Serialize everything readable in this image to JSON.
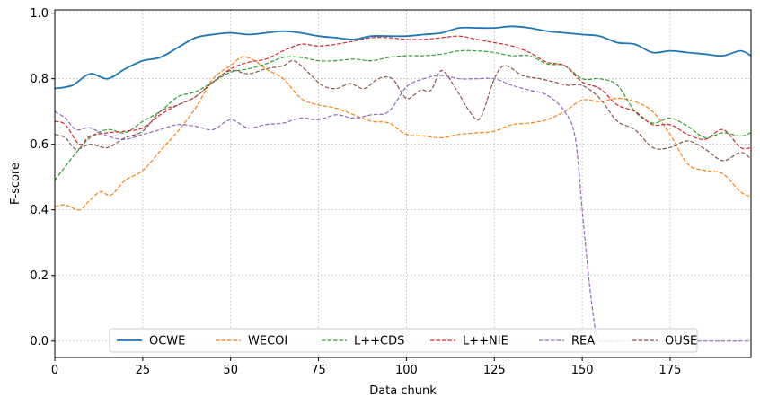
{
  "chart_data": {
    "type": "line",
    "title": "",
    "xlabel": "Data chunk",
    "ylabel": "F-score",
    "xlim": [
      0,
      198
    ],
    "ylim": [
      -0.05,
      1.01
    ],
    "xticks": [
      0,
      25,
      50,
      75,
      100,
      125,
      150,
      175
    ],
    "yticks": [
      0.0,
      0.2,
      0.4,
      0.6,
      0.8,
      1.0
    ],
    "xtick_labels": [
      "0",
      "25",
      "50",
      "75",
      "100",
      "125",
      "150",
      "175"
    ],
    "ytick_labels": [
      "0.0",
      "0.2",
      "0.4",
      "0.6",
      "0.8",
      "1.0"
    ],
    "grid": true,
    "legend_position": "bottom-center",
    "series": [
      {
        "name": "OCWE",
        "color": "#1f77b4",
        "style": "solid",
        "points": [
          [
            0,
            0.77
          ],
          [
            5,
            0.78
          ],
          [
            10,
            0.815
          ],
          [
            15,
            0.8
          ],
          [
            20,
            0.83
          ],
          [
            25,
            0.855
          ],
          [
            30,
            0.865
          ],
          [
            35,
            0.895
          ],
          [
            40,
            0.925
          ],
          [
            45,
            0.935
          ],
          [
            50,
            0.94
          ],
          [
            55,
            0.935
          ],
          [
            60,
            0.94
          ],
          [
            65,
            0.945
          ],
          [
            70,
            0.94
          ],
          [
            75,
            0.93
          ],
          [
            80,
            0.925
          ],
          [
            85,
            0.92
          ],
          [
            90,
            0.93
          ],
          [
            95,
            0.93
          ],
          [
            100,
            0.93
          ],
          [
            105,
            0.935
          ],
          [
            110,
            0.94
          ],
          [
            115,
            0.955
          ],
          [
            120,
            0.955
          ],
          [
            125,
            0.955
          ],
          [
            130,
            0.96
          ],
          [
            135,
            0.955
          ],
          [
            140,
            0.945
          ],
          [
            145,
            0.94
          ],
          [
            150,
            0.935
          ],
          [
            155,
            0.93
          ],
          [
            160,
            0.91
          ],
          [
            165,
            0.905
          ],
          [
            170,
            0.88
          ],
          [
            175,
            0.885
          ],
          [
            180,
            0.88
          ],
          [
            185,
            0.875
          ],
          [
            190,
            0.87
          ],
          [
            195,
            0.885
          ],
          [
            198,
            0.87
          ]
        ]
      },
      {
        "name": "WECOI",
        "color": "#ff7f0e",
        "style": "dashed",
        "points": [
          [
            0,
            0.41
          ],
          [
            3,
            0.415
          ],
          [
            7,
            0.4
          ],
          [
            10,
            0.43
          ],
          [
            13,
            0.455
          ],
          [
            16,
            0.445
          ],
          [
            20,
            0.49
          ],
          [
            25,
            0.52
          ],
          [
            30,
            0.58
          ],
          [
            35,
            0.64
          ],
          [
            40,
            0.71
          ],
          [
            45,
            0.8
          ],
          [
            50,
            0.84
          ],
          [
            53,
            0.865
          ],
          [
            56,
            0.86
          ],
          [
            60,
            0.83
          ],
          [
            65,
            0.8
          ],
          [
            70,
            0.74
          ],
          [
            75,
            0.72
          ],
          [
            80,
            0.71
          ],
          [
            85,
            0.69
          ],
          [
            90,
            0.67
          ],
          [
            95,
            0.665
          ],
          [
            100,
            0.63
          ],
          [
            105,
            0.625
          ],
          [
            110,
            0.62
          ],
          [
            115,
            0.63
          ],
          [
            120,
            0.635
          ],
          [
            125,
            0.64
          ],
          [
            130,
            0.66
          ],
          [
            135,
            0.665
          ],
          [
            140,
            0.675
          ],
          [
            145,
            0.7
          ],
          [
            150,
            0.735
          ],
          [
            155,
            0.73
          ],
          [
            160,
            0.74
          ],
          [
            165,
            0.73
          ],
          [
            170,
            0.7
          ],
          [
            175,
            0.63
          ],
          [
            180,
            0.54
          ],
          [
            185,
            0.52
          ],
          [
            190,
            0.51
          ],
          [
            195,
            0.455
          ],
          [
            198,
            0.44
          ]
        ]
      },
      {
        "name": "L++CDS",
        "color": "#2ca02c",
        "style": "dashed",
        "points": [
          [
            0,
            0.49
          ],
          [
            5,
            0.56
          ],
          [
            10,
            0.62
          ],
          [
            15,
            0.645
          ],
          [
            20,
            0.635
          ],
          [
            25,
            0.67
          ],
          [
            30,
            0.7
          ],
          [
            35,
            0.745
          ],
          [
            40,
            0.76
          ],
          [
            45,
            0.79
          ],
          [
            50,
            0.82
          ],
          [
            55,
            0.83
          ],
          [
            60,
            0.845
          ],
          [
            65,
            0.865
          ],
          [
            70,
            0.865
          ],
          [
            75,
            0.855
          ],
          [
            80,
            0.855
          ],
          [
            85,
            0.86
          ],
          [
            90,
            0.855
          ],
          [
            95,
            0.865
          ],
          [
            100,
            0.87
          ],
          [
            105,
            0.87
          ],
          [
            110,
            0.875
          ],
          [
            115,
            0.885
          ],
          [
            120,
            0.885
          ],
          [
            125,
            0.88
          ],
          [
            130,
            0.87
          ],
          [
            135,
            0.87
          ],
          [
            140,
            0.845
          ],
          [
            145,
            0.84
          ],
          [
            150,
            0.8
          ],
          [
            155,
            0.8
          ],
          [
            160,
            0.78
          ],
          [
            165,
            0.7
          ],
          [
            170,
            0.665
          ],
          [
            175,
            0.68
          ],
          [
            180,
            0.655
          ],
          [
            185,
            0.62
          ],
          [
            190,
            0.635
          ],
          [
            195,
            0.625
          ],
          [
            198,
            0.635
          ]
        ]
      },
      {
        "name": "L++NIE",
        "color": "#d62728",
        "style": "dashed",
        "points": [
          [
            0,
            0.67
          ],
          [
            3,
            0.66
          ],
          [
            7,
            0.6
          ],
          [
            10,
            0.625
          ],
          [
            15,
            0.635
          ],
          [
            20,
            0.64
          ],
          [
            25,
            0.65
          ],
          [
            30,
            0.69
          ],
          [
            35,
            0.72
          ],
          [
            40,
            0.745
          ],
          [
            45,
            0.79
          ],
          [
            50,
            0.83
          ],
          [
            55,
            0.85
          ],
          [
            60,
            0.86
          ],
          [
            65,
            0.885
          ],
          [
            70,
            0.905
          ],
          [
            75,
            0.9
          ],
          [
            80,
            0.905
          ],
          [
            85,
            0.915
          ],
          [
            90,
            0.925
          ],
          [
            95,
            0.925
          ],
          [
            100,
            0.92
          ],
          [
            105,
            0.92
          ],
          [
            110,
            0.925
          ],
          [
            115,
            0.93
          ],
          [
            120,
            0.92
          ],
          [
            125,
            0.91
          ],
          [
            130,
            0.9
          ],
          [
            135,
            0.88
          ],
          [
            140,
            0.85
          ],
          [
            145,
            0.84
          ],
          [
            150,
            0.79
          ],
          [
            155,
            0.77
          ],
          [
            160,
            0.72
          ],
          [
            165,
            0.7
          ],
          [
            170,
            0.66
          ],
          [
            175,
            0.66
          ],
          [
            180,
            0.63
          ],
          [
            185,
            0.615
          ],
          [
            190,
            0.645
          ],
          [
            195,
            0.59
          ],
          [
            198,
            0.59
          ]
        ]
      },
      {
        "name": "REA",
        "color": "#9467bd",
        "style": "dashed",
        "points": [
          [
            0,
            0.7
          ],
          [
            3,
            0.68
          ],
          [
            6,
            0.645
          ],
          [
            10,
            0.65
          ],
          [
            15,
            0.625
          ],
          [
            20,
            0.615
          ],
          [
            25,
            0.63
          ],
          [
            30,
            0.645
          ],
          [
            35,
            0.66
          ],
          [
            40,
            0.655
          ],
          [
            45,
            0.645
          ],
          [
            50,
            0.675
          ],
          [
            55,
            0.65
          ],
          [
            60,
            0.66
          ],
          [
            65,
            0.665
          ],
          [
            70,
            0.68
          ],
          [
            75,
            0.675
          ],
          [
            80,
            0.69
          ],
          [
            85,
            0.68
          ],
          [
            90,
            0.69
          ],
          [
            95,
            0.7
          ],
          [
            100,
            0.775
          ],
          [
            105,
            0.8
          ],
          [
            110,
            0.81
          ],
          [
            115,
            0.8
          ],
          [
            120,
            0.8
          ],
          [
            125,
            0.8
          ],
          [
            130,
            0.78
          ],
          [
            135,
            0.765
          ],
          [
            140,
            0.75
          ],
          [
            145,
            0.7
          ],
          [
            148,
            0.62
          ],
          [
            150,
            0.4
          ],
          [
            152,
            0.18
          ],
          [
            154,
            0.02
          ],
          [
            156,
            0.0
          ],
          [
            160,
            0.0
          ],
          [
            170,
            0.0
          ],
          [
            180,
            0.0
          ],
          [
            190,
            0.0
          ],
          [
            198,
            0.0
          ]
        ]
      },
      {
        "name": "OUSE",
        "color": "#8c564b",
        "style": "dashed",
        "points": [
          [
            0,
            0.63
          ],
          [
            3,
            0.62
          ],
          [
            6,
            0.585
          ],
          [
            10,
            0.6
          ],
          [
            15,
            0.59
          ],
          [
            20,
            0.62
          ],
          [
            25,
            0.64
          ],
          [
            30,
            0.7
          ],
          [
            35,
            0.72
          ],
          [
            40,
            0.745
          ],
          [
            45,
            0.79
          ],
          [
            50,
            0.825
          ],
          [
            55,
            0.815
          ],
          [
            60,
            0.83
          ],
          [
            65,
            0.84
          ],
          [
            68,
            0.855
          ],
          [
            72,
            0.82
          ],
          [
            76,
            0.78
          ],
          [
            80,
            0.77
          ],
          [
            84,
            0.785
          ],
          [
            88,
            0.77
          ],
          [
            92,
            0.8
          ],
          [
            96,
            0.8
          ],
          [
            100,
            0.74
          ],
          [
            104,
            0.765
          ],
          [
            107,
            0.765
          ],
          [
            110,
            0.825
          ],
          [
            114,
            0.77
          ],
          [
            118,
            0.7
          ],
          [
            121,
            0.68
          ],
          [
            125,
            0.8
          ],
          [
            128,
            0.84
          ],
          [
            133,
            0.81
          ],
          [
            138,
            0.8
          ],
          [
            142,
            0.79
          ],
          [
            146,
            0.78
          ],
          [
            150,
            0.78
          ],
          [
            155,
            0.74
          ],
          [
            160,
            0.67
          ],
          [
            165,
            0.645
          ],
          [
            170,
            0.59
          ],
          [
            175,
            0.59
          ],
          [
            180,
            0.61
          ],
          [
            185,
            0.585
          ],
          [
            190,
            0.55
          ],
          [
            195,
            0.575
          ],
          [
            198,
            0.555
          ]
        ]
      }
    ]
  }
}
